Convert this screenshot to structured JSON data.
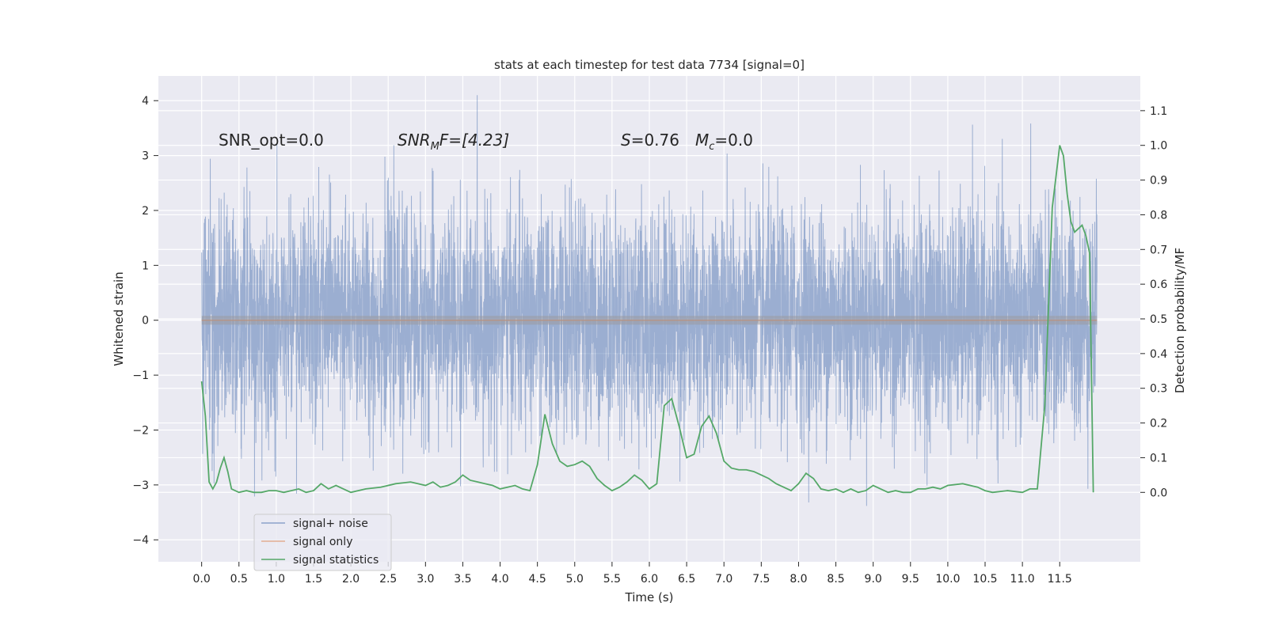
{
  "chart_data": {
    "type": "line",
    "title": "stats at each timestep for test data 7734 [signal=0]",
    "xlabel": "Time (s)",
    "ylabel": "Whitened strain",
    "y2label": "Detection probability/MF",
    "xlim": [
      -0.58,
      12.58
    ],
    "ylim": [
      -4.4,
      4.45
    ],
    "y2lim": [
      -0.2,
      1.2
    ],
    "xticks": [
      0.0,
      0.5,
      1.0,
      1.5,
      2.0,
      2.5,
      3.0,
      3.5,
      4.0,
      4.5,
      5.0,
      5.5,
      6.0,
      6.5,
      7.0,
      7.5,
      8.0,
      8.5,
      9.0,
      9.5,
      10.0,
      10.5,
      11.0,
      11.5
    ],
    "xtick_labels": [
      "0.0",
      "0.5",
      "1.0",
      "1.5",
      "2.0",
      "2.5",
      "3.0",
      "3.5",
      "4.0",
      "4.5",
      "5.0",
      "5.5",
      "6.0",
      "6.5",
      "7.0",
      "7.5",
      "8.0",
      "8.5",
      "9.0",
      "9.5",
      "10.0",
      "10.5",
      "11.0",
      "11.5"
    ],
    "yticks": [
      4,
      3,
      2,
      1,
      0,
      -1,
      -2,
      -3,
      -4
    ],
    "ytick_labels": [
      "4",
      "3",
      "2",
      "1",
      "0",
      "−1",
      "−2",
      "−3",
      "−4"
    ],
    "y2ticks": [
      1.1,
      1.0,
      0.9,
      0.8,
      0.7,
      0.6,
      0.5,
      0.4,
      0.3,
      0.2,
      0.1,
      0.0
    ],
    "y2tick_labels": [
      "1.1",
      "1.0",
      "0.9",
      "0.8",
      "0.7",
      "0.6",
      "0.5",
      "0.4",
      "0.3",
      "0.2",
      "0.1",
      "0.0"
    ],
    "annotations": {
      "snr_opt": "SNR_opt=0.0",
      "snr_mf_italic": "SNR",
      "snr_mf_sub": "M",
      "snr_mf_rest": "F=[4.23]",
      "s_italic": "S",
      "s_value": "=0.76",
      "mc_italic": "M",
      "mc_sub": "c",
      "mc_value": "=0.0"
    },
    "legend": {
      "location": "lower-left",
      "entries": [
        "signal+ noise",
        "signal only",
        "signal statistics"
      ]
    },
    "series": [
      {
        "name": "signal+ noise",
        "color": "#4c72b0",
        "opacity": 0.5,
        "description": "whitened noise, roughly Gaussian, dense band about ±1.4, spikes to ±4",
        "x_range": [
          0.0,
          12.0
        ],
        "std": 1.0,
        "peak_max": 4.1,
        "peak_min": -3.8
      },
      {
        "name": "signal only",
        "color": "#dd8452",
        "x_range": [
          0.0,
          12.0
        ],
        "constant_value": 0.0
      },
      {
        "name": "signal statistics",
        "color": "#55a868",
        "x": [
          0.0,
          0.05,
          0.1,
          0.15,
          0.2,
          0.25,
          0.3,
          0.35,
          0.4,
          0.5,
          0.6,
          0.7,
          0.8,
          0.9,
          1.0,
          1.1,
          1.2,
          1.3,
          1.4,
          1.5,
          1.6,
          1.7,
          1.8,
          1.9,
          2.0,
          2.2,
          2.4,
          2.6,
          2.8,
          3.0,
          3.1,
          3.2,
          3.3,
          3.4,
          3.5,
          3.6,
          3.7,
          3.8,
          3.9,
          4.0,
          4.1,
          4.2,
          4.3,
          4.4,
          4.5,
          4.6,
          4.7,
          4.8,
          4.9,
          5.0,
          5.1,
          5.2,
          5.3,
          5.4,
          5.5,
          5.6,
          5.7,
          5.8,
          5.9,
          6.0,
          6.1,
          6.2,
          6.3,
          6.4,
          6.5,
          6.6,
          6.7,
          6.8,
          6.9,
          7.0,
          7.1,
          7.2,
          7.3,
          7.4,
          7.5,
          7.6,
          7.7,
          7.8,
          7.9,
          8.0,
          8.1,
          8.2,
          8.3,
          8.4,
          8.5,
          8.6,
          8.7,
          8.8,
          8.9,
          9.0,
          9.1,
          9.2,
          9.3,
          9.4,
          9.5,
          9.6,
          9.7,
          9.8,
          9.9,
          10.0,
          10.2,
          10.4,
          10.5,
          10.6,
          10.8,
          11.0,
          11.1,
          11.2,
          11.3,
          11.4,
          11.5,
          11.55,
          11.6,
          11.65,
          11.7,
          11.75,
          11.8,
          11.85,
          11.9,
          11.95
        ],
        "values": [
          0.32,
          0.22,
          0.03,
          0.01,
          0.03,
          0.07,
          0.1,
          0.06,
          0.01,
          0.0,
          0.005,
          0.0,
          0.0,
          0.005,
          0.005,
          0.0,
          0.005,
          0.01,
          0.0,
          0.005,
          0.025,
          0.01,
          0.02,
          0.01,
          0.0,
          0.01,
          0.015,
          0.025,
          0.03,
          0.02,
          0.03,
          0.015,
          0.02,
          0.03,
          0.05,
          0.035,
          0.03,
          0.025,
          0.02,
          0.01,
          0.015,
          0.02,
          0.01,
          0.005,
          0.08,
          0.225,
          0.14,
          0.09,
          0.075,
          0.08,
          0.09,
          0.075,
          0.04,
          0.02,
          0.005,
          0.015,
          0.03,
          0.05,
          0.035,
          0.01,
          0.025,
          0.25,
          0.27,
          0.19,
          0.1,
          0.11,
          0.19,
          0.22,
          0.17,
          0.09,
          0.07,
          0.065,
          0.065,
          0.06,
          0.05,
          0.04,
          0.025,
          0.015,
          0.005,
          0.025,
          0.055,
          0.04,
          0.01,
          0.005,
          0.01,
          0.0,
          0.01,
          0.0,
          0.005,
          0.02,
          0.01,
          0.0,
          0.005,
          0.0,
          0.0,
          0.01,
          0.01,
          0.015,
          0.01,
          0.02,
          0.025,
          0.015,
          0.005,
          0.0,
          0.005,
          0.0,
          0.01,
          0.01,
          0.25,
          0.82,
          1.0,
          0.97,
          0.86,
          0.78,
          0.75,
          0.76,
          0.77,
          0.74,
          0.69,
          0.0
        ]
      }
    ]
  }
}
